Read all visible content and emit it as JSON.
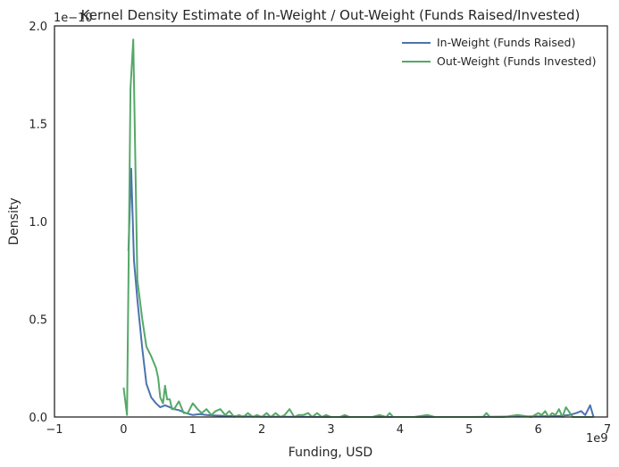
{
  "chart_data": {
    "type": "line",
    "title": "Kernel Density Estimate of In-Weight / Out-Weight (Funds Raised/Invested)",
    "xlabel": "Funding, USD",
    "ylabel": "Density",
    "x_offset_label": "1e9",
    "y_offset_label": "1e−10",
    "xlim": [
      -1,
      7
    ],
    "ylim": [
      0,
      2.0
    ],
    "x_ticks": [
      -1,
      0,
      1,
      2,
      3,
      4,
      5,
      6,
      7
    ],
    "x_tick_labels": [
      "−1",
      "0",
      "1",
      "2",
      "3",
      "4",
      "5",
      "6",
      "7"
    ],
    "y_ticks": [
      0,
      0.5,
      1.0,
      1.5,
      2.0
    ],
    "y_tick_labels": [
      "0.0",
      "0.5",
      "1.0",
      "1.5",
      "2.0"
    ],
    "grid": false,
    "legend_position": "top-right",
    "series": [
      {
        "name": "In-Weight (Funds Raised)",
        "color": "#4c72b0",
        "x": [
          0.07,
          0.11,
          0.15,
          0.2,
          0.27,
          0.33,
          0.4,
          0.47,
          0.53,
          0.6,
          0.67,
          0.73,
          0.8,
          0.9,
          1.0,
          1.1,
          1.2,
          1.3,
          1.5,
          1.7,
          2.0,
          2.5,
          3.0,
          4.0,
          5.0,
          6.0,
          6.3,
          6.45,
          6.55,
          6.62,
          6.68,
          6.75,
          6.8
        ],
        "y": [
          0.85,
          1.27,
          0.8,
          0.6,
          0.35,
          0.17,
          0.1,
          0.07,
          0.05,
          0.06,
          0.05,
          0.04,
          0.035,
          0.02,
          0.01,
          0.015,
          0.01,
          0.008,
          0.005,
          0.003,
          0.002,
          0.001,
          0.0,
          0.0,
          0.0,
          0.003,
          0.005,
          0.01,
          0.02,
          0.03,
          0.01,
          0.06,
          0.0
        ]
      },
      {
        "name": "Out-Weight (Funds Invested)",
        "color": "#55a868",
        "x": [
          0.0,
          0.05,
          0.1,
          0.14,
          0.2,
          0.27,
          0.33,
          0.4,
          0.47,
          0.5,
          0.53,
          0.57,
          0.6,
          0.63,
          0.67,
          0.7,
          0.73,
          0.8,
          0.87,
          0.93,
          1.0,
          1.07,
          1.13,
          1.2,
          1.27,
          1.33,
          1.4,
          1.47,
          1.53,
          1.6,
          1.67,
          1.73,
          1.8,
          1.87,
          1.93,
          2.0,
          2.07,
          2.13,
          2.2,
          2.27,
          2.33,
          2.4,
          2.47,
          2.53,
          2.6,
          2.67,
          2.73,
          2.8,
          2.87,
          2.93,
          3.0,
          3.07,
          3.13,
          3.2,
          3.27,
          3.33,
          3.4,
          3.5,
          3.6,
          3.7,
          3.8,
          3.85,
          3.9,
          4.0,
          4.2,
          4.4,
          4.5,
          4.6,
          4.8,
          5.0,
          5.2,
          5.25,
          5.3,
          5.5,
          5.7,
          5.9,
          6.0,
          6.05,
          6.1,
          6.15,
          6.2,
          6.25,
          6.3,
          6.35,
          6.4,
          6.5,
          6.6,
          6.7,
          6.8
        ],
        "y": [
          0.15,
          0.01,
          1.68,
          1.93,
          0.7,
          0.5,
          0.36,
          0.31,
          0.25,
          0.2,
          0.1,
          0.07,
          0.16,
          0.09,
          0.09,
          0.04,
          0.04,
          0.08,
          0.02,
          0.02,
          0.07,
          0.04,
          0.02,
          0.04,
          0.01,
          0.03,
          0.04,
          0.01,
          0.03,
          0.0,
          0.01,
          0.0,
          0.02,
          0.0,
          0.01,
          0.0,
          0.02,
          0.0,
          0.02,
          0.0,
          0.01,
          0.04,
          0.0,
          0.01,
          0.01,
          0.02,
          0.0,
          0.02,
          0.0,
          0.01,
          0.0,
          0.0,
          0.0,
          0.01,
          0.0,
          0.0,
          0.0,
          0.0,
          0.0,
          0.01,
          0.0,
          0.02,
          0.0,
          0.0,
          0.0,
          0.01,
          0.0,
          0.0,
          0.0,
          0.0,
          0.0,
          0.02,
          0.0,
          0.0,
          0.01,
          0.0,
          0.02,
          0.01,
          0.03,
          0.0,
          0.02,
          0.01,
          0.04,
          0.0,
          0.05,
          0.0,
          0.0,
          0.0,
          0.0
        ]
      }
    ]
  }
}
